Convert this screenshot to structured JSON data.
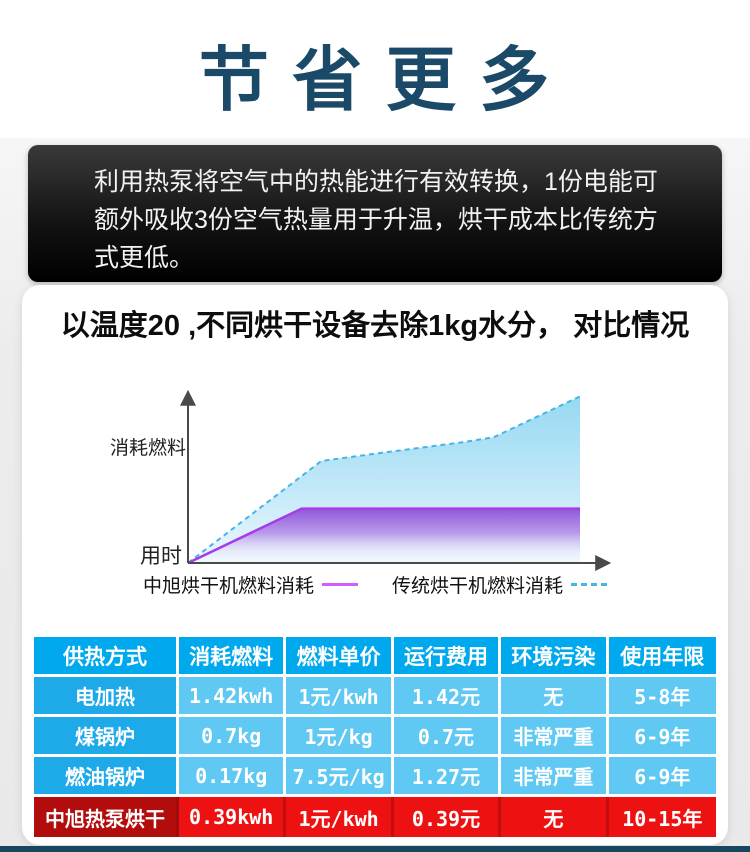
{
  "page": {
    "title": "节 省 更 多",
    "banner_text": "利用热泵将空气中的热能进行有效转换，1份电能可额外吸收3份空气热量用于升温，烘干成本比传统方式更低。",
    "card_title": "以温度20 ,不同烘干设备去除1kg水分， 对比情况"
  },
  "chart_data": {
    "type": "area",
    "title": "",
    "xlabel": "用时",
    "ylabel": "消耗燃料",
    "legend_position": "bottom",
    "grid": false,
    "axis_note": "axes unlabeled, values normalized 0-100",
    "series": [
      {
        "name": "中旭烘干机燃料消耗",
        "style": "solid",
        "color": "#a43de8",
        "legend_color": "#d45bff",
        "x": [
          0,
          29,
          100
        ],
        "y": [
          0,
          32,
          32
        ]
      },
      {
        "name": "传统烘干机燃料消耗",
        "style": "dashed",
        "color": "#44b4ea",
        "legend_color": "#44b4ea",
        "x": [
          0,
          34,
          50,
          70,
          78,
          100
        ],
        "y": [
          0,
          60,
          65,
          71,
          74,
          98
        ]
      }
    ]
  },
  "table": {
    "headers": [
      "供热方式",
      "消耗燃料",
      "燃料单价",
      "运行费用",
      "环境污染",
      "使用年限"
    ],
    "rows": [
      {
        "label": "电加热",
        "cells": [
          "1.42kwh",
          "1元/kwh",
          "1.42元",
          "无",
          "5-8年"
        ],
        "highlight": false
      },
      {
        "label": "煤锅炉",
        "cells": [
          "0.7kg",
          "1元/kg",
          "0.7元",
          "非常严重",
          "6-9年"
        ],
        "highlight": false
      },
      {
        "label": "燃油锅炉",
        "cells": [
          "0.17kg",
          "7.5元/kg",
          "1.27元",
          "非常严重",
          "6-9年"
        ],
        "highlight": false
      },
      {
        "label": "中旭热泵烘干",
        "cells": [
          "0.39kwh",
          "1元/kwh",
          "0.39元",
          "无",
          "10-15年"
        ],
        "highlight": true
      }
    ]
  },
  "colors": {
    "title": "#1b4a68",
    "table_header_bg": "#00a9ee",
    "table_label_bg": "#1ea9e9",
    "table_cell_bg": "#5fc8f3",
    "highlight_label_bg": "#b30c0c",
    "highlight_cell_bg": "#ee1111",
    "bottom_bar": "#17465f"
  }
}
